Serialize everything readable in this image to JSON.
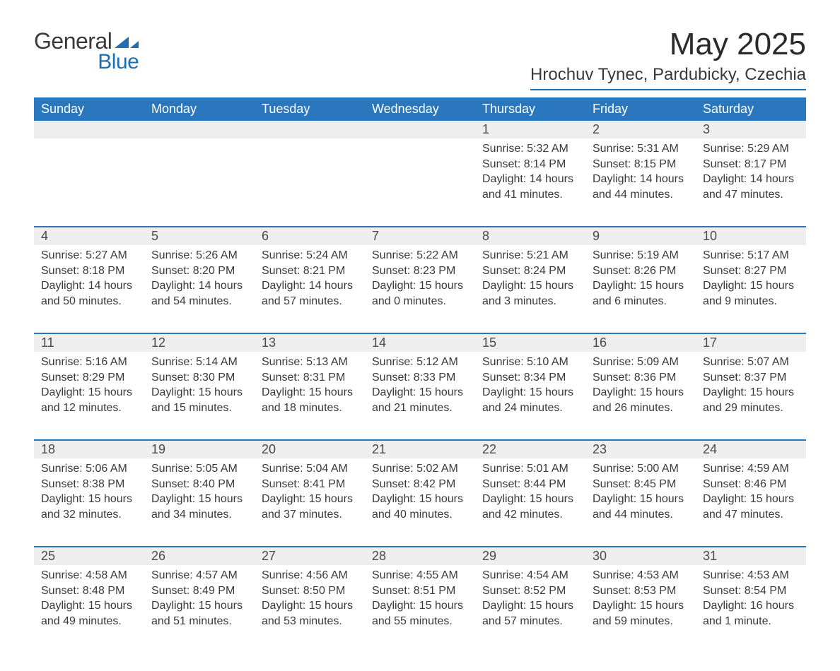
{
  "brand": {
    "text_general": "General",
    "text_blue": "Blue",
    "mark_color": "#1f6fb2"
  },
  "title": "May 2025",
  "subtitle": "Hrochuv Tynec, Pardubicky, Czechia",
  "colors": {
    "header_bg": "#2a77bd",
    "header_text": "#ffffff",
    "daynum_bg": "#eeeeee",
    "rule": "#2a77bd",
    "body_text": "#3a3a3a",
    "page_bg": "#ffffff"
  },
  "day_headers": [
    "Sunday",
    "Monday",
    "Tuesday",
    "Wednesday",
    "Thursday",
    "Friday",
    "Saturday"
  ],
  "weeks": [
    {
      "nums": [
        "",
        "",
        "",
        "",
        "1",
        "2",
        "3"
      ],
      "cells": [
        null,
        null,
        null,
        null,
        {
          "sunrise": "5:32 AM",
          "sunset": "8:14 PM",
          "daylight": "14 hours and 41 minutes."
        },
        {
          "sunrise": "5:31 AM",
          "sunset": "8:15 PM",
          "daylight": "14 hours and 44 minutes."
        },
        {
          "sunrise": "5:29 AM",
          "sunset": "8:17 PM",
          "daylight": "14 hours and 47 minutes."
        }
      ]
    },
    {
      "nums": [
        "4",
        "5",
        "6",
        "7",
        "8",
        "9",
        "10"
      ],
      "cells": [
        {
          "sunrise": "5:27 AM",
          "sunset": "8:18 PM",
          "daylight": "14 hours and 50 minutes."
        },
        {
          "sunrise": "5:26 AM",
          "sunset": "8:20 PM",
          "daylight": "14 hours and 54 minutes."
        },
        {
          "sunrise": "5:24 AM",
          "sunset": "8:21 PM",
          "daylight": "14 hours and 57 minutes."
        },
        {
          "sunrise": "5:22 AM",
          "sunset": "8:23 PM",
          "daylight": "15 hours and 0 minutes."
        },
        {
          "sunrise": "5:21 AM",
          "sunset": "8:24 PM",
          "daylight": "15 hours and 3 minutes."
        },
        {
          "sunrise": "5:19 AM",
          "sunset": "8:26 PM",
          "daylight": "15 hours and 6 minutes."
        },
        {
          "sunrise": "5:17 AM",
          "sunset": "8:27 PM",
          "daylight": "15 hours and 9 minutes."
        }
      ]
    },
    {
      "nums": [
        "11",
        "12",
        "13",
        "14",
        "15",
        "16",
        "17"
      ],
      "cells": [
        {
          "sunrise": "5:16 AM",
          "sunset": "8:29 PM",
          "daylight": "15 hours and 12 minutes."
        },
        {
          "sunrise": "5:14 AM",
          "sunset": "8:30 PM",
          "daylight": "15 hours and 15 minutes."
        },
        {
          "sunrise": "5:13 AM",
          "sunset": "8:31 PM",
          "daylight": "15 hours and 18 minutes."
        },
        {
          "sunrise": "5:12 AM",
          "sunset": "8:33 PM",
          "daylight": "15 hours and 21 minutes."
        },
        {
          "sunrise": "5:10 AM",
          "sunset": "8:34 PM",
          "daylight": "15 hours and 24 minutes."
        },
        {
          "sunrise": "5:09 AM",
          "sunset": "8:36 PM",
          "daylight": "15 hours and 26 minutes."
        },
        {
          "sunrise": "5:07 AM",
          "sunset": "8:37 PM",
          "daylight": "15 hours and 29 minutes."
        }
      ]
    },
    {
      "nums": [
        "18",
        "19",
        "20",
        "21",
        "22",
        "23",
        "24"
      ],
      "cells": [
        {
          "sunrise": "5:06 AM",
          "sunset": "8:38 PM",
          "daylight": "15 hours and 32 minutes."
        },
        {
          "sunrise": "5:05 AM",
          "sunset": "8:40 PM",
          "daylight": "15 hours and 34 minutes."
        },
        {
          "sunrise": "5:04 AM",
          "sunset": "8:41 PM",
          "daylight": "15 hours and 37 minutes."
        },
        {
          "sunrise": "5:02 AM",
          "sunset": "8:42 PM",
          "daylight": "15 hours and 40 minutes."
        },
        {
          "sunrise": "5:01 AM",
          "sunset": "8:44 PM",
          "daylight": "15 hours and 42 minutes."
        },
        {
          "sunrise": "5:00 AM",
          "sunset": "8:45 PM",
          "daylight": "15 hours and 44 minutes."
        },
        {
          "sunrise": "4:59 AM",
          "sunset": "8:46 PM",
          "daylight": "15 hours and 47 minutes."
        }
      ]
    },
    {
      "nums": [
        "25",
        "26",
        "27",
        "28",
        "29",
        "30",
        "31"
      ],
      "cells": [
        {
          "sunrise": "4:58 AM",
          "sunset": "8:48 PM",
          "daylight": "15 hours and 49 minutes."
        },
        {
          "sunrise": "4:57 AM",
          "sunset": "8:49 PM",
          "daylight": "15 hours and 51 minutes."
        },
        {
          "sunrise": "4:56 AM",
          "sunset": "8:50 PM",
          "daylight": "15 hours and 53 minutes."
        },
        {
          "sunrise": "4:55 AM",
          "sunset": "8:51 PM",
          "daylight": "15 hours and 55 minutes."
        },
        {
          "sunrise": "4:54 AM",
          "sunset": "8:52 PM",
          "daylight": "15 hours and 57 minutes."
        },
        {
          "sunrise": "4:53 AM",
          "sunset": "8:53 PM",
          "daylight": "15 hours and 59 minutes."
        },
        {
          "sunrise": "4:53 AM",
          "sunset": "8:54 PM",
          "daylight": "16 hours and 1 minute."
        }
      ]
    }
  ],
  "labels": {
    "sunrise": "Sunrise: ",
    "sunset": "Sunset: ",
    "daylight": "Daylight: "
  }
}
